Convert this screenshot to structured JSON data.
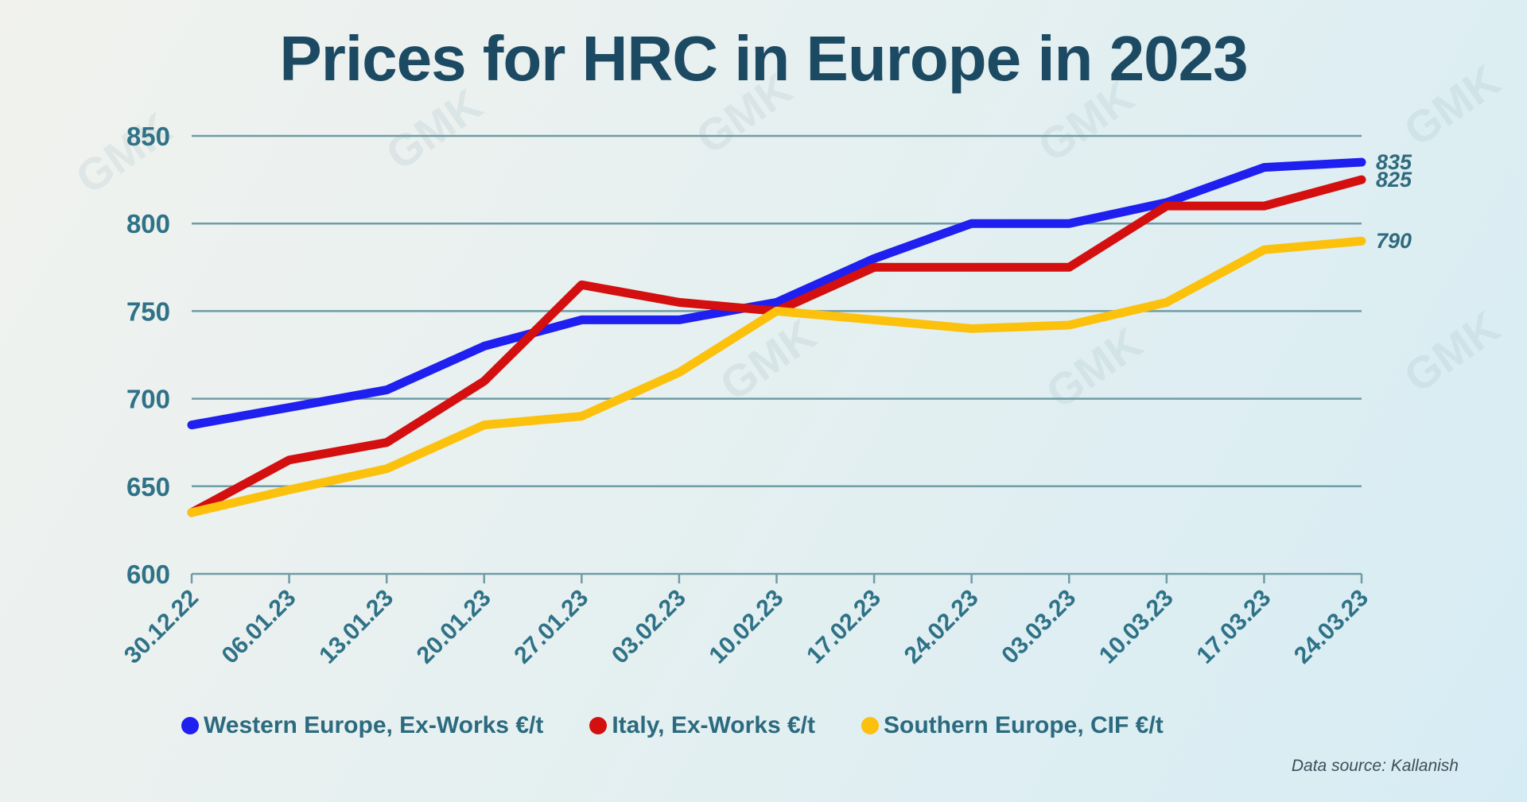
{
  "chart_data": {
    "type": "line",
    "title": "Prices for HRC in Europe in 2023",
    "xlabel": "",
    "ylabel": "",
    "ylim": [
      600,
      850
    ],
    "yticks": [
      600,
      650,
      700,
      750,
      800,
      850
    ],
    "grid": true,
    "legend_placement": "bottom",
    "categories": [
      "30.12.22",
      "06.01.23",
      "13.01.23",
      "20.01.23",
      "27.01.23",
      "03.02.23",
      "10.02.23",
      "17.02.23",
      "24.02.23",
      "03.03.23",
      "10.03.23",
      "17.03.23",
      "24.03.23"
    ],
    "series": [
      {
        "name": "Western Europe, Ex-Works €/t",
        "color": "#1f1ff0",
        "values": [
          685,
          695,
          705,
          730,
          745,
          745,
          755,
          780,
          800,
          800,
          812,
          832,
          835
        ],
        "end_label": "835"
      },
      {
        "name": "Italy, Ex-Works €/t",
        "color": "#d40f0f",
        "values": [
          635,
          665,
          675,
          710,
          765,
          755,
          750,
          775,
          775,
          775,
          810,
          810,
          825
        ],
        "end_label": "825"
      },
      {
        "name": "Southern Europe, CIF €/t",
        "color": "#fcc10d",
        "values": [
          635,
          648,
          660,
          685,
          690,
          715,
          750,
          745,
          740,
          742,
          755,
          785,
          790
        ],
        "end_label": "790"
      }
    ],
    "source": "Data source: Kallanish"
  }
}
